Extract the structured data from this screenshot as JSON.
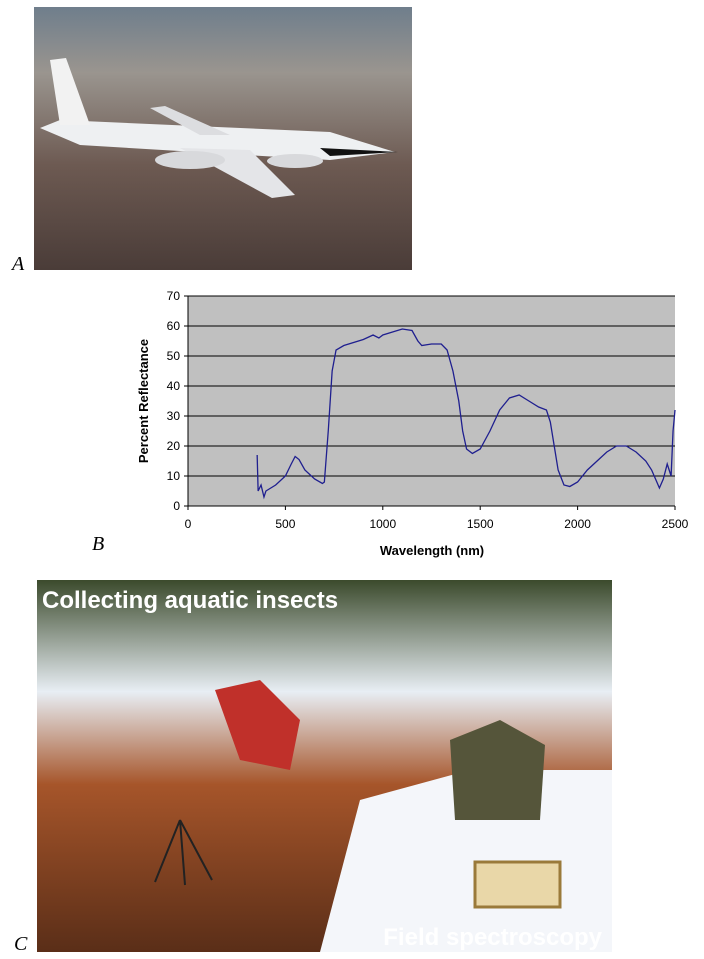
{
  "panel_labels": [
    "A",
    "B",
    "C"
  ],
  "photo_captions": [
    "Collecting aquatic insects",
    "Field spectroscopy"
  ],
  "chart_data": {
    "type": "line",
    "x_label": "Wavelength (nm)",
    "y_label": "Percent Reflectance",
    "xlim": [
      0,
      2500
    ],
    "ylim": [
      0,
      70
    ],
    "xticks": [
      0,
      500,
      1000,
      1500,
      2000,
      2500
    ],
    "yticks": [
      0,
      10,
      20,
      30,
      40,
      50,
      60,
      70
    ],
    "grid": true,
    "x": [
      355,
      360,
      375,
      390,
      400,
      450,
      500,
      530,
      550,
      570,
      600,
      650,
      690,
      700,
      720,
      740,
      760,
      800,
      900,
      950,
      980,
      1000,
      1050,
      1100,
      1150,
      1180,
      1200,
      1250,
      1300,
      1330,
      1360,
      1390,
      1410,
      1430,
      1460,
      1500,
      1550,
      1600,
      1650,
      1700,
      1750,
      1800,
      1840,
      1860,
      1880,
      1900,
      1930,
      1960,
      2000,
      2050,
      2100,
      2150,
      2200,
      2250,
      2300,
      2350,
      2380,
      2400,
      2420,
      2440,
      2460,
      2480,
      2490,
      2500
    ],
    "series": [
      {
        "color": "#1f1f8f",
        "values": [
          17,
          5,
          7,
          3,
          5,
          7,
          10,
          14,
          16.5,
          15.5,
          12,
          9,
          7.5,
          8,
          25,
          45,
          52,
          53.5,
          55.5,
          57,
          56,
          57,
          58,
          59,
          58.5,
          55,
          53.5,
          54,
          54,
          52,
          45,
          35,
          25,
          19,
          17.5,
          19,
          25,
          32,
          36,
          37,
          35,
          33,
          32,
          28,
          20,
          12,
          7,
          6.5,
          8,
          12,
          15,
          18,
          20,
          20,
          18,
          15,
          12,
          9,
          6,
          9,
          14,
          10,
          25,
          32
        ]
      }
    ]
  }
}
